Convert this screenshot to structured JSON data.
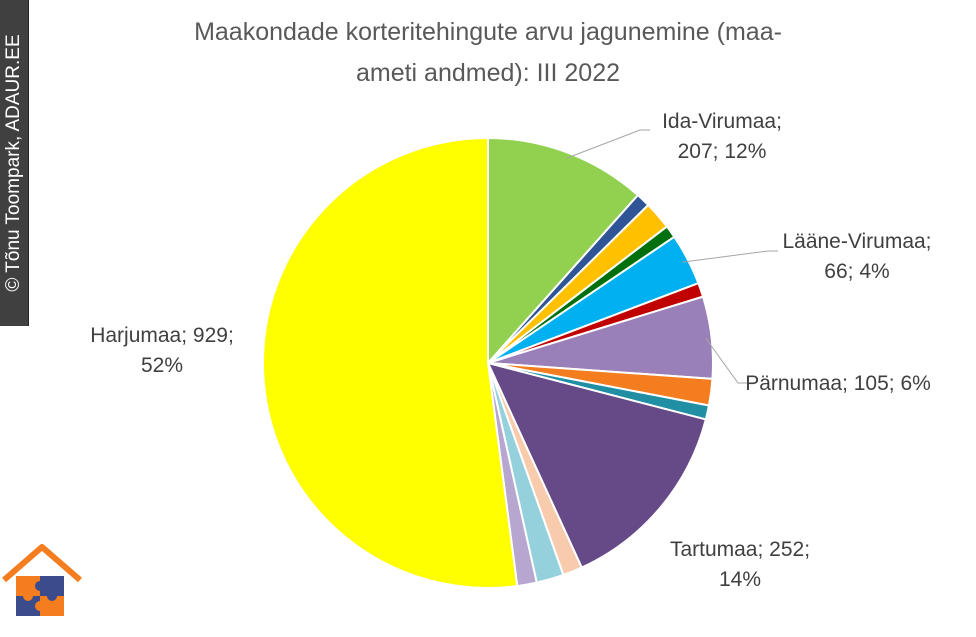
{
  "watermark": {
    "text": "© Tõnu Toompark, ADAUR.EE"
  },
  "chart_data": {
    "type": "pie",
    "title": "Maakondade korteritehingute arvu jagunemine (maa-ameti andmed): III 2022",
    "title_lines": [
      "Maakondade korteritehingute arvu jagunemine (maa-",
      "ameti andmed): III 2022"
    ],
    "slices": [
      {
        "value": 207,
        "color": "#92D050",
        "label": "Ida-Virumaa; 207; 12%",
        "label_lines": [
          "Ida-Virumaa;",
          "207; 12%"
        ]
      },
      {
        "value": 18,
        "color": "#2F5597"
      },
      {
        "value": 36,
        "color": "#FFC000"
      },
      {
        "value": 16,
        "color": "#00700E"
      },
      {
        "value": 66,
        "color": "#00B0F0",
        "label": "Lääne-Virumaa; 66; 4%",
        "label_lines": [
          "Lääne-Virumaa;",
          "66; 4%"
        ]
      },
      {
        "value": 18,
        "color": "#C00000"
      },
      {
        "value": 105,
        "color": "#9A80B8",
        "label": "Pärnumaa; 105; 6%",
        "label_lines": [
          "Pärnumaa; 105; 6%"
        ]
      },
      {
        "value": 34,
        "color": "#F47D1F"
      },
      {
        "value": 18,
        "color": "#208EA3"
      },
      {
        "value": 252,
        "color": "#664A87",
        "label": "Tartumaa; 252; 14%",
        "label_lines": [
          "Tartumaa; 252;",
          "14%"
        ]
      },
      {
        "value": 25,
        "color": "#F8CBAD"
      },
      {
        "value": 35,
        "color": "#95D0DD"
      },
      {
        "value": 25,
        "color": "#B6A6D0"
      },
      {
        "value": 929,
        "color": "#FFFF00",
        "label": "Harjumaa; 929; 52%",
        "label_lines": [
          "Harjumaa; 929;",
          "52%"
        ]
      }
    ]
  }
}
